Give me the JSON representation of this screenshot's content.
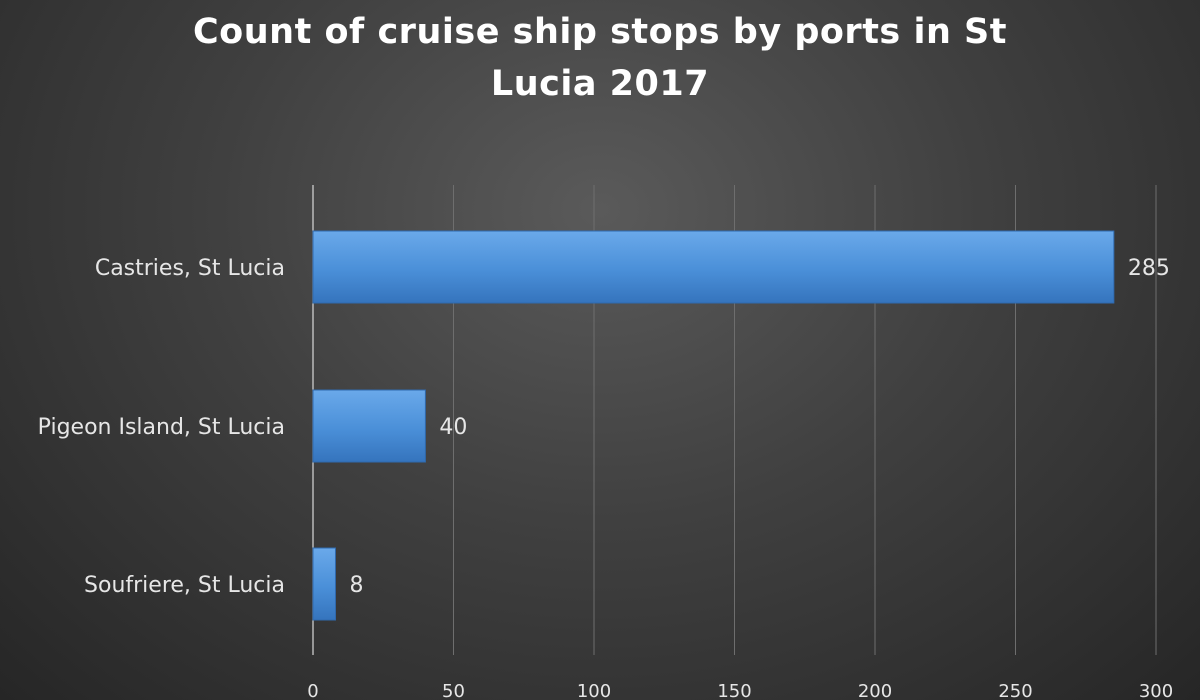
{
  "chart_data": {
    "type": "bar",
    "orientation": "horizontal",
    "title_lines": [
      "Count of cruise ship stops by ports in St",
      "Lucia 2017"
    ],
    "categories": [
      "Castries, St Lucia",
      "Pigeon Island, St Lucia",
      "Soufriere, St Lucia"
    ],
    "values": [
      285,
      40,
      8
    ],
    "data_labels": [
      "285",
      "40",
      "8"
    ],
    "xlabel": "",
    "ylabel": "",
    "xlim": [
      0,
      300
    ],
    "x_ticks": [
      0,
      50,
      100,
      150,
      200,
      250,
      300
    ],
    "x_tick_labels": [
      "0",
      "50",
      "100",
      "150",
      "200",
      "250",
      "300"
    ],
    "grid": "vertical",
    "legend": "none",
    "bar_color": "#4a90d9"
  }
}
